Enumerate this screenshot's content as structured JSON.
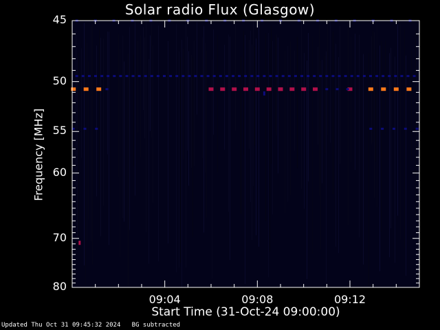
{
  "chart_data": {
    "type": "heatmap",
    "title": "Solar radio Flux (Glasgow)",
    "xlabel": "Start Time (31-Oct-24 09:00:00)",
    "ylabel": "Frequency [MHz]",
    "footer": "Updated Thu Oct 31 09:45:32 2024   BG subtracted",
    "x_unit": "minutes after 09:00",
    "xlim": [
      0,
      15
    ],
    "ylim": [
      80,
      45
    ],
    "y_scale": "reciprocal",
    "x_ticks": [
      {
        "value": 4,
        "label": "09:04"
      },
      {
        "value": 8,
        "label": "09:08"
      },
      {
        "value": 12,
        "label": "09:12"
      }
    ],
    "y_ticks": [
      {
        "value": 45,
        "label": "45"
      },
      {
        "value": 50,
        "label": "50"
      },
      {
        "value": 55,
        "label": "55"
      },
      {
        "value": 60,
        "label": "60"
      },
      {
        "value": 70,
        "label": "70"
      },
      {
        "value": 80,
        "label": "80"
      }
    ],
    "colors": {
      "background": "#03031a",
      "low": "#0c0c7a",
      "medium": "#b0104a",
      "high": "#ff7a1a"
    },
    "bands": [
      {
        "freq": 49.5,
        "level": "low",
        "x_start": 0.2,
        "x_end": 15,
        "step": 0.27
      },
      {
        "freq": 50.7,
        "level": "high",
        "x_start": 0.05,
        "x_end": 1.2,
        "step": 0.55
      },
      {
        "freq": 50.7,
        "level": "low",
        "x_start": 1.5,
        "x_end": 1.7,
        "step": 0.5
      },
      {
        "freq": 50.7,
        "level": "medium",
        "x_start": 6.0,
        "x_end": 9.0,
        "step": 0.5
      },
      {
        "freq": 50.7,
        "level": "medium",
        "x_start": 9.0,
        "x_end": 10.9,
        "step": 0.5
      },
      {
        "freq": 50.7,
        "level": "medium",
        "x_start": 12.0,
        "x_end": 12.1,
        "step": 0.5
      },
      {
        "freq": 50.7,
        "level": "low",
        "x_start": 11.0,
        "x_end": 11.9,
        "step": 0.45
      },
      {
        "freq": 50.7,
        "level": "high",
        "x_start": 12.9,
        "x_end": 15.0,
        "step": 0.55
      },
      {
        "freq": 54.7,
        "level": "low",
        "x_start": 0.05,
        "x_end": 1.2,
        "step": 0.5
      },
      {
        "freq": 54.7,
        "level": "low",
        "x_start": 12.9,
        "x_end": 15.0,
        "step": 0.5
      },
      {
        "freq": 45.0,
        "level": "low",
        "x_start": 0.2,
        "x_end": 14.8,
        "step": 0.8
      }
    ],
    "points": [
      {
        "x": 0.32,
        "freq": 70.8,
        "level": "medium"
      },
      {
        "x": 8.3,
        "freq": 51.1,
        "level": "low"
      }
    ]
  }
}
